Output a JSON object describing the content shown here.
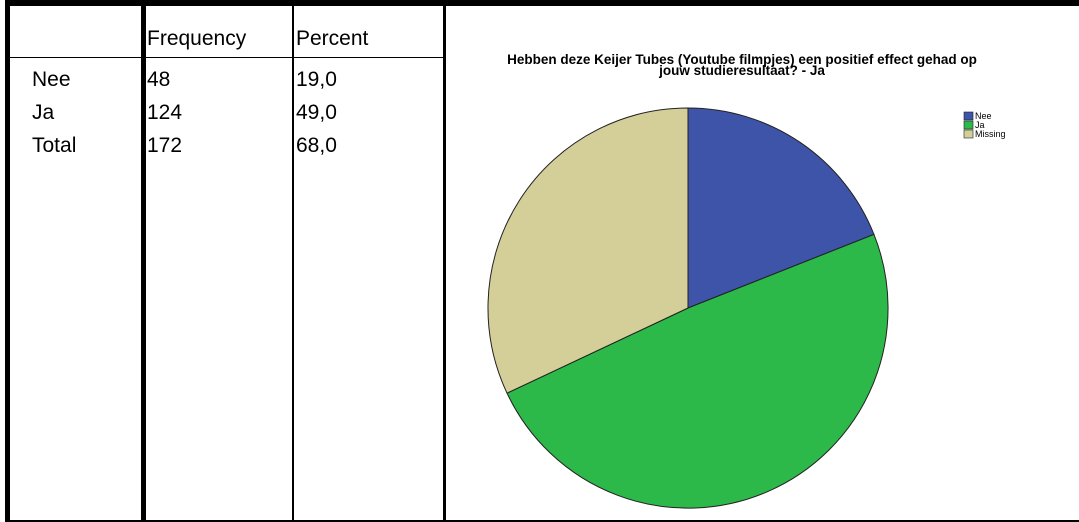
{
  "table": {
    "columns": [
      "Frequency",
      "Percent"
    ],
    "rows": [
      {
        "label": "Nee",
        "frequency": "48",
        "percent": "19,0"
      },
      {
        "label": "Ja",
        "frequency": "124",
        "percent": "49,0"
      },
      {
        "label": "Total",
        "frequency": "172",
        "percent": "68,0"
      }
    ]
  },
  "chart_data": {
    "type": "pie",
    "title": "Hebben deze Keijer Tubes (Youtube filmpjes) een positief effect gehad op jouw studieresultaat? - Ja",
    "categories": [
      "Nee",
      "Ja",
      "Missing"
    ],
    "values": [
      19.0,
      49.0,
      32.0
    ],
    "colors": [
      "#3d54a8",
      "#2db84a",
      "#d4ce98"
    ],
    "legend": {
      "placement": "top-right",
      "entries": [
        "Nee",
        "Ja",
        "Missing"
      ]
    }
  }
}
